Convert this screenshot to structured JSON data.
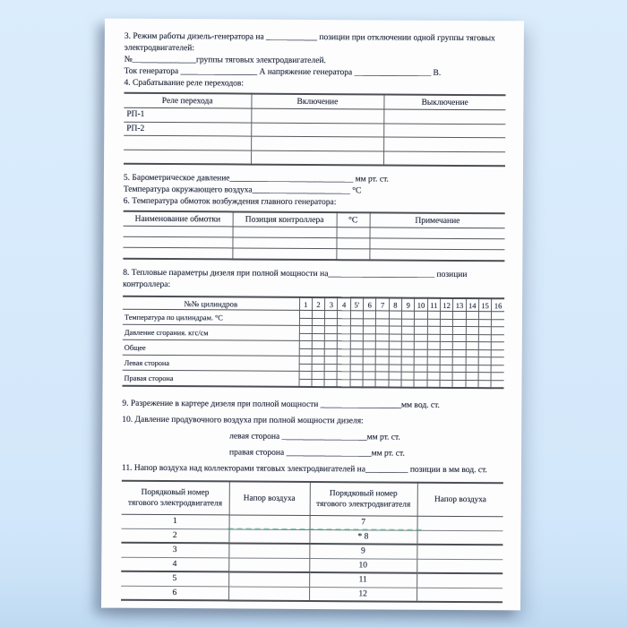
{
  "colors": {
    "canvas_background": "#d6e9fb",
    "page_background": "#fdfdfe",
    "ink": "#2a3143",
    "table_line": "#54585d",
    "artifact_dash": "#3aa07a"
  },
  "document": {
    "section3": {
      "line1": "3. Режим работы дизель-генератора на ____________ позиции при отключении одной группы тяговых",
      "line2": "электродвигателей:",
      "line3": "№_______________группы тяговых электродвигателей.",
      "line4": "Ток генератора __________________ А напряжение генератора __________________ В."
    },
    "section4": {
      "title": "4. Срабатывание реле переходов:",
      "table": {
        "headers": [
          "Реле перехода",
          "Включение",
          "Выключение"
        ],
        "rows": [
          [
            "РП-1",
            "",
            ""
          ],
          [
            "РП-2",
            "",
            ""
          ],
          [
            "",
            "",
            ""
          ],
          [
            "",
            "",
            ""
          ]
        ]
      }
    },
    "section5": {
      "line1": "5. Барометрическое давление_____________________________ мм рт. ст.",
      "line2": "Температура окружающего воздуха_______________________ °С"
    },
    "section6": {
      "title": "6. Температура обмоток возбуждения главного генератора:",
      "table": {
        "headers": [
          "Наименование обмотки",
          "Позиция контроллера",
          "°С",
          "Примечание"
        ],
        "rows": [
          [
            "",
            "",
            "",
            ""
          ],
          [
            "",
            "",
            "",
            ""
          ],
          [
            "",
            "",
            "",
            ""
          ]
        ]
      }
    },
    "section8": {
      "line1": "8. Тепловые параметры дизеля при полной мощности на_________________________ позиции",
      "line2": "контроллера:",
      "table": {
        "corner": "№№ цилиндров",
        "columns": [
          "1",
          "2",
          "3",
          "4",
          "5'",
          "6",
          "7",
          "8",
          "9",
          "10",
          "11",
          "12",
          "13",
          "14",
          "15",
          "16"
        ],
        "row_labels": [
          "Температура по цилиндрам. °С",
          "Давление сгорания. кгс/см",
          "Общее",
          "Левая сторона",
          "Правая сторона"
        ]
      }
    },
    "section9": {
      "line1": "9. Разрежение в картере дизеля при полной мощности ___________________мм вод. ст."
    },
    "section10": {
      "title": "10. Давление продувочного воздуха при полной мощности дизеля:",
      "left_line": "левая сторона ____________________мм рт. ст.",
      "right_line": "правая сторона ____________________мм рт. ст."
    },
    "section11": {
      "title": "11. Напор воздуха над коллекторами тяговых электродвигателей на__________ позиции в мм вод. ст.",
      "table": {
        "header_col1": [
          "Порядковый номер",
          "тягового электродвигателя"
        ],
        "header_col2": "Напор воздуха",
        "header_col3": [
          "Порядковый номер",
          "тягового электродвигателя"
        ],
        "header_col4": "Напор воздуха",
        "rows": [
          [
            "1",
            "",
            "7",
            ""
          ],
          [
            "2",
            "",
            "* 8",
            ""
          ],
          [
            "3",
            "",
            "9",
            ""
          ],
          [
            "4",
            "",
            "10",
            ""
          ],
          [
            "5",
            "",
            "11",
            ""
          ],
          [
            "6",
            "",
            "12",
            ""
          ]
        ]
      }
    }
  }
}
